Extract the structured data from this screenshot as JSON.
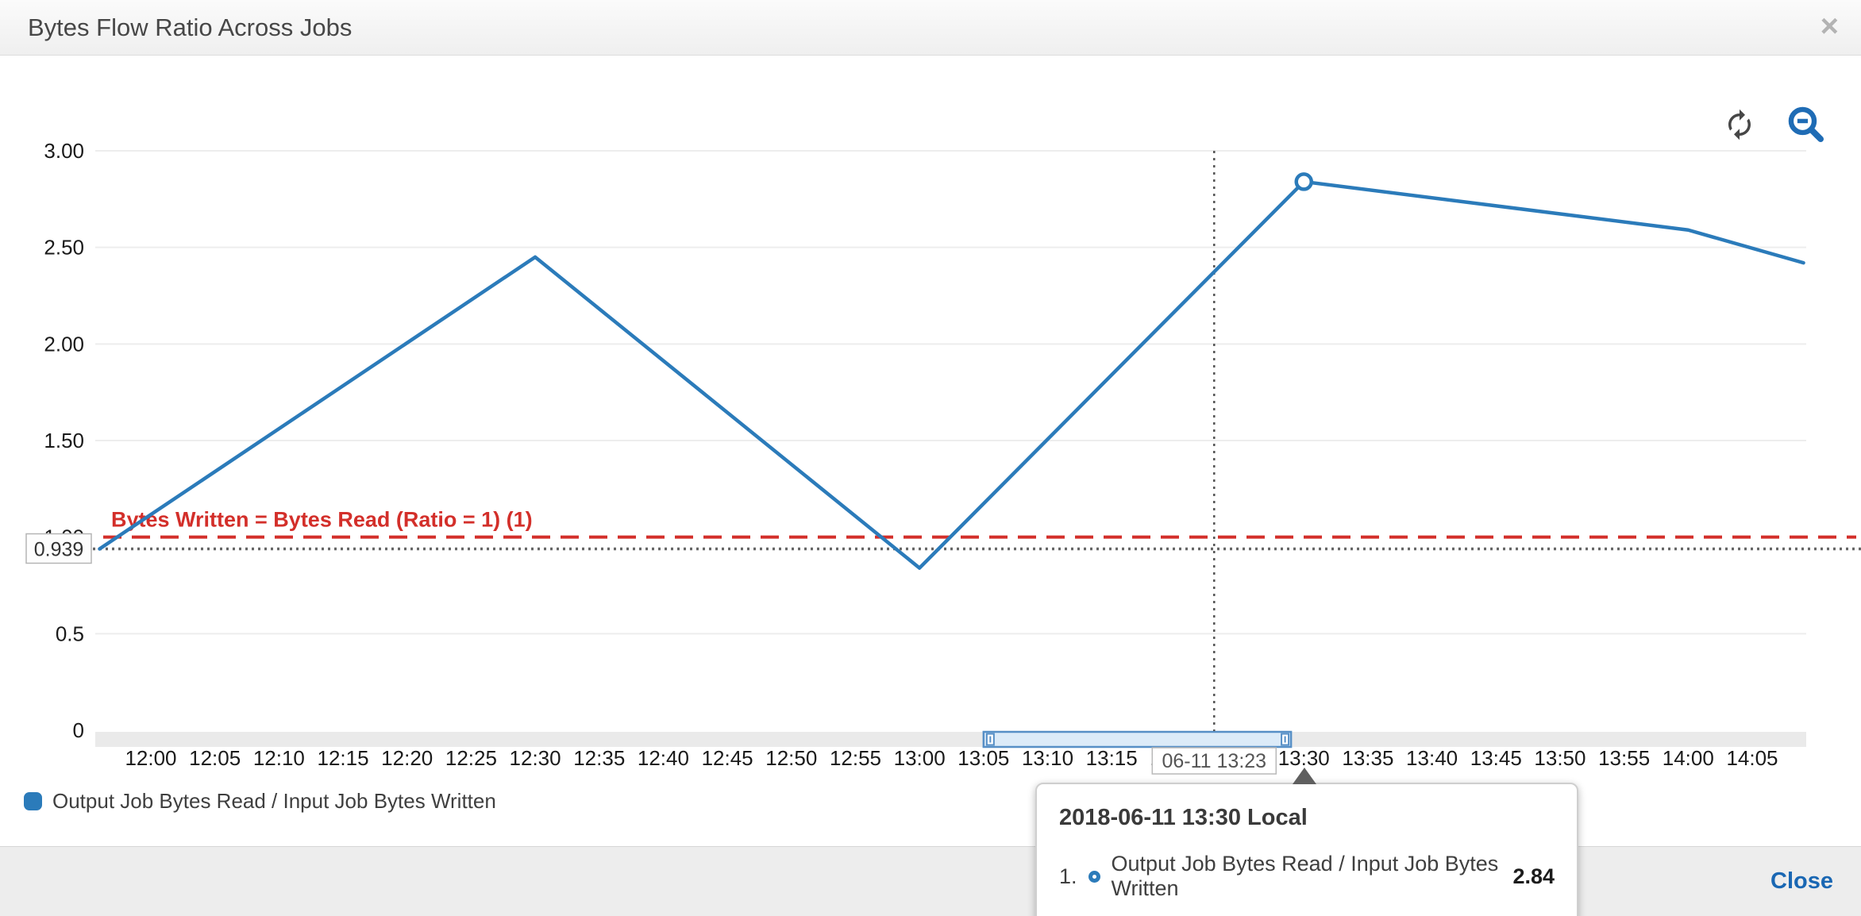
{
  "header": {
    "title": "Bytes Flow Ratio Across Jobs",
    "close_icon": "×"
  },
  "toolbar": {
    "refresh_icon": "refresh",
    "zoom_out_icon": "zoom-out"
  },
  "chart_data": {
    "type": "line",
    "title": "Bytes Flow Ratio Across Jobs",
    "ylim": [
      0,
      3
    ],
    "grid": "horizontal",
    "x_start": "12:00",
    "x_tick_interval_min": 5,
    "x_tick_labels": [
      "12:00",
      "12:05",
      "12:10",
      "12:15",
      "12:20",
      "12:25",
      "12:30",
      "12:35",
      "12:40",
      "12:45",
      "12:50",
      "12:55",
      "13:00",
      "13:05",
      "13:10",
      "13:15",
      "13:20",
      "13:25",
      "13:30",
      "13:35",
      "13:40",
      "13:45",
      "13:50",
      "13:55",
      "14:00",
      "14:05"
    ],
    "y_ticks": [
      {
        "value": 3,
        "label": "3.00"
      },
      {
        "value": 2.5,
        "label": "2.50"
      },
      {
        "value": 2,
        "label": "2.00"
      },
      {
        "value": 1.5,
        "label": "1.50"
      },
      {
        "value": 1,
        "label": "1.00"
      },
      {
        "value": 0.5,
        "label": "0.5"
      },
      {
        "value": 0,
        "label": "0"
      }
    ],
    "series": [
      {
        "name": "Output Job Bytes Read / Input Job Bytes Written",
        "color": "#2b7bba",
        "points": [
          [
            "11:56",
            0.939
          ],
          [
            "12:30",
            2.45
          ],
          [
            "13:00",
            0.84
          ],
          [
            "13:30",
            2.84
          ],
          [
            "14:00",
            2.59
          ],
          [
            "14:09",
            2.42
          ]
        ]
      }
    ],
    "hover_point": {
      "time": "13:30",
      "value": 2.84
    },
    "annotations": {
      "red_line": {
        "value": 1,
        "label": "Bytes Written = Bytes Read (Ratio = 1) (1)",
        "color": "#d32f2a",
        "style": "dashed"
      },
      "dotted_line": {
        "value": 0.939,
        "label": "0.939",
        "color": "#666666",
        "style": "dotted"
      },
      "cursor_line": {
        "time": "13:23",
        "label": "06-11 13:23",
        "style": "dotted"
      }
    },
    "zoom_selection": {
      "from": "13:05",
      "to": "13:29"
    }
  },
  "tooltip": {
    "title": "2018-06-11 13:30 Local",
    "rows": [
      {
        "index": "1.",
        "label": "Output Job Bytes Read / Input Job Bytes Written",
        "value": "2.84"
      }
    ]
  },
  "legend": {
    "items": [
      {
        "label": "Output Job Bytes Read / Input Job Bytes Written",
        "color": "#2b7bba"
      }
    ]
  },
  "footer": {
    "close_label": "Close"
  }
}
